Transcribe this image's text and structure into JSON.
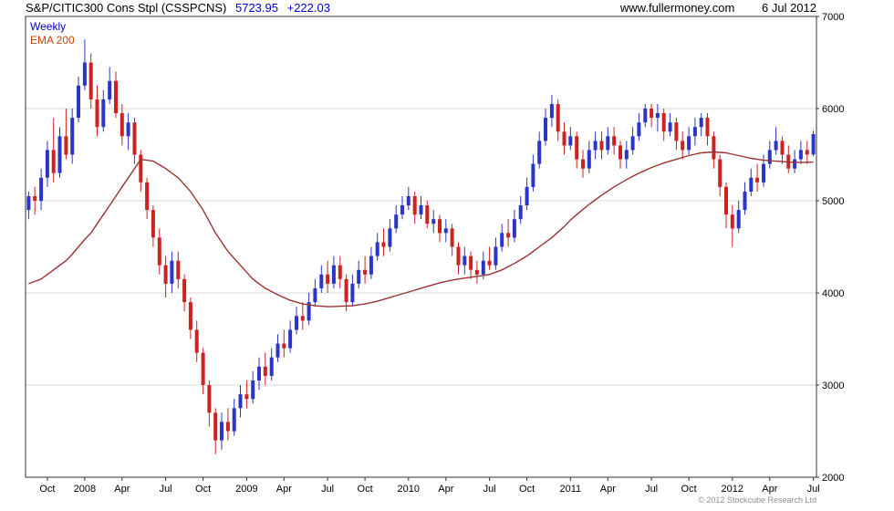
{
  "header": {
    "title": "S&P/CITIC300 Cons Stpl (CSSPCNS)",
    "price": "5723.95",
    "change": "+222.03",
    "website": "www.fullermoney.com",
    "date": "6 Jul 2012"
  },
  "legend": {
    "weekly": "Weekly",
    "ema": "EMA 200"
  },
  "footer": {
    "copyright": "© 2012 Stockcube Research Ltd"
  },
  "colors": {
    "up": "#2b35c8",
    "down": "#cc2222",
    "ema": "#993333",
    "grid": "#d8d8d8",
    "axis": "#333333",
    "accent": "#0000cc",
    "ema_label": "#cc4400"
  },
  "chart_data": {
    "type": "candlestick",
    "title": "S&P/CITIC300 Cons Stpl (CSSPCNS) weekly candles with 200-period EMA",
    "interval": "weekly",
    "last_close": 5723.95,
    "change": 222.03,
    "ylim": [
      2000,
      7000
    ],
    "y_ticks": [
      2000,
      3000,
      4000,
      5000,
      6000,
      7000
    ],
    "grid": "horizontal",
    "legend_position": "top-left",
    "x_ticks": [
      {
        "label": "Oct",
        "i": 3
      },
      {
        "label": "2008",
        "i": 9
      },
      {
        "label": "Apr",
        "i": 15
      },
      {
        "label": "Jul",
        "i": 22
      },
      {
        "label": "Oct",
        "i": 28
      },
      {
        "label": "2009",
        "i": 35
      },
      {
        "label": "Apr",
        "i": 41
      },
      {
        "label": "Jul",
        "i": 48
      },
      {
        "label": "Oct",
        "i": 54
      },
      {
        "label": "2010",
        "i": 61
      },
      {
        "label": "Apr",
        "i": 67
      },
      {
        "label": "Jul",
        "i": 74
      },
      {
        "label": "Oct",
        "i": 80
      },
      {
        "label": "2011",
        "i": 87
      },
      {
        "label": "Apr",
        "i": 93
      },
      {
        "label": "Jul",
        "i": 100
      },
      {
        "label": "Oct",
        "i": 106
      },
      {
        "label": "2012",
        "i": 113
      },
      {
        "label": "Apr",
        "i": 119
      },
      {
        "label": "Jul",
        "i": 126
      }
    ],
    "candles": [
      [
        4900,
        5100,
        4800,
        5050
      ],
      [
        5050,
        5150,
        4850,
        5000
      ],
      [
        5000,
        5350,
        4900,
        5250
      ],
      [
        5250,
        5650,
        5150,
        5550
      ],
      [
        5550,
        5900,
        5200,
        5300
      ],
      [
        5300,
        5800,
        5250,
        5700
      ],
      [
        5700,
        6000,
        5450,
        5500
      ],
      [
        5500,
        6000,
        5400,
        5900
      ],
      [
        5900,
        6350,
        5850,
        6250
      ],
      [
        6250,
        6750,
        6200,
        6500
      ],
      [
        6500,
        6600,
        6000,
        6100
      ],
      [
        6100,
        6250,
        5700,
        5800
      ],
      [
        5800,
        6200,
        5750,
        6100
      ],
      [
        6100,
        6450,
        6050,
        6300
      ],
      [
        6300,
        6400,
        5900,
        5950
      ],
      [
        5950,
        6050,
        5600,
        5700
      ],
      [
        5700,
        5950,
        5550,
        5850
      ],
      [
        5850,
        5900,
        5400,
        5500
      ],
      [
        5500,
        5550,
        5100,
        5200
      ],
      [
        5200,
        5250,
        4800,
        4900
      ],
      [
        4900,
        4950,
        4500,
        4600
      ],
      [
        4600,
        4700,
        4200,
        4300
      ],
      [
        4300,
        4400,
        3950,
        4100
      ],
      [
        4100,
        4450,
        4000,
        4350
      ],
      [
        4350,
        4450,
        4050,
        4150
      ],
      [
        4150,
        4200,
        3800,
        3900
      ],
      [
        3900,
        3950,
        3500,
        3600
      ],
      [
        3600,
        3700,
        3250,
        3350
      ],
      [
        3350,
        3400,
        2900,
        3000
      ],
      [
        3000,
        3050,
        2550,
        2700
      ],
      [
        2700,
        2750,
        2250,
        2400
      ],
      [
        2400,
        2700,
        2300,
        2600
      ],
      [
        2600,
        2750,
        2400,
        2500
      ],
      [
        2500,
        2850,
        2450,
        2750
      ],
      [
        2750,
        3000,
        2650,
        2900
      ],
      [
        2900,
        3050,
        2750,
        2850
      ],
      [
        2850,
        3150,
        2800,
        3050
      ],
      [
        3050,
        3300,
        2950,
        3200
      ],
      [
        3200,
        3350,
        3000,
        3100
      ],
      [
        3100,
        3400,
        3050,
        3300
      ],
      [
        3300,
        3550,
        3250,
        3450
      ],
      [
        3450,
        3600,
        3300,
        3400
      ],
      [
        3400,
        3700,
        3350,
        3600
      ],
      [
        3600,
        3850,
        3550,
        3750
      ],
      [
        3750,
        3900,
        3600,
        3700
      ],
      [
        3700,
        4000,
        3650,
        3900
      ],
      [
        3900,
        4150,
        3850,
        4050
      ],
      [
        4050,
        4300,
        4000,
        4200
      ],
      [
        4200,
        4350,
        4000,
        4100
      ],
      [
        4100,
        4400,
        4050,
        4300
      ],
      [
        4300,
        4400,
        4050,
        4150
      ],
      [
        4150,
        4200,
        3800,
        3900
      ],
      [
        3900,
        4200,
        3850,
        4100
      ],
      [
        4100,
        4350,
        4050,
        4250
      ],
      [
        4250,
        4400,
        4100,
        4200
      ],
      [
        4200,
        4500,
        4150,
        4400
      ],
      [
        4400,
        4650,
        4350,
        4550
      ],
      [
        4550,
        4700,
        4400,
        4500
      ],
      [
        4500,
        4800,
        4450,
        4700
      ],
      [
        4700,
        4950,
        4650,
        4850
      ],
      [
        4850,
        5050,
        4800,
        4950
      ],
      [
        4950,
        5150,
        4900,
        5050
      ],
      [
        5050,
        5100,
        4750,
        4850
      ],
      [
        4850,
        5050,
        4800,
        4950
      ],
      [
        4950,
        5000,
        4700,
        4750
      ],
      [
        4750,
        4900,
        4650,
        4800
      ],
      [
        4800,
        4850,
        4550,
        4650
      ],
      [
        4650,
        4800,
        4550,
        4700
      ],
      [
        4700,
        4750,
        4400,
        4500
      ],
      [
        4500,
        4550,
        4200,
        4300
      ],
      [
        4300,
        4500,
        4200,
        4400
      ],
      [
        4400,
        4450,
        4150,
        4250
      ],
      [
        4250,
        4350,
        4100,
        4200
      ],
      [
        4200,
        4450,
        4150,
        4350
      ],
      [
        4350,
        4500,
        4250,
        4300
      ],
      [
        4300,
        4600,
        4250,
        4500
      ],
      [
        4500,
        4750,
        4450,
        4650
      ],
      [
        4650,
        4800,
        4500,
        4600
      ],
      [
        4600,
        4900,
        4550,
        4800
      ],
      [
        4800,
        5050,
        4750,
        4950
      ],
      [
        4950,
        5250,
        4900,
        5150
      ],
      [
        5150,
        5500,
        5100,
        5400
      ],
      [
        5400,
        5750,
        5350,
        5650
      ],
      [
        5650,
        6000,
        5600,
        5900
      ],
      [
        5900,
        6150,
        5800,
        6050
      ],
      [
        6050,
        6100,
        5650,
        5750
      ],
      [
        5750,
        5850,
        5500,
        5600
      ],
      [
        5600,
        5800,
        5550,
        5700
      ],
      [
        5700,
        5750,
        5350,
        5450
      ],
      [
        5450,
        5550,
        5250,
        5350
      ],
      [
        5350,
        5650,
        5300,
        5550
      ],
      [
        5550,
        5750,
        5450,
        5650
      ],
      [
        5650,
        5750,
        5450,
        5550
      ],
      [
        5550,
        5800,
        5500,
        5700
      ],
      [
        5700,
        5800,
        5500,
        5600
      ],
      [
        5600,
        5650,
        5350,
        5450
      ],
      [
        5450,
        5650,
        5350,
        5550
      ],
      [
        5550,
        5800,
        5500,
        5700
      ],
      [
        5700,
        5950,
        5650,
        5850
      ],
      [
        5850,
        6050,
        5800,
        6000
      ],
      [
        6000,
        6050,
        5800,
        5900
      ],
      [
        5900,
        6050,
        5750,
        5950
      ],
      [
        5950,
        6000,
        5650,
        5750
      ],
      [
        5750,
        5950,
        5700,
        5850
      ],
      [
        5850,
        5900,
        5550,
        5650
      ],
      [
        5650,
        5750,
        5450,
        5550
      ],
      [
        5550,
        5800,
        5500,
        5700
      ],
      [
        5700,
        5900,
        5600,
        5800
      ],
      [
        5800,
        5950,
        5700,
        5900
      ],
      [
        5900,
        5950,
        5600,
        5700
      ],
      [
        5700,
        5750,
        5350,
        5450
      ],
      [
        5450,
        5500,
        5050,
        5150
      ],
      [
        5150,
        5200,
        4700,
        4850
      ],
      [
        4850,
        4950,
        4500,
        4700
      ],
      [
        4700,
        5000,
        4650,
        4900
      ],
      [
        4900,
        5200,
        4850,
        5100
      ],
      [
        5100,
        5350,
        5050,
        5250
      ],
      [
        5250,
        5400,
        5100,
        5200
      ],
      [
        5200,
        5500,
        5150,
        5400
      ],
      [
        5400,
        5650,
        5350,
        5550
      ],
      [
        5550,
        5800,
        5500,
        5650
      ],
      [
        5650,
        5700,
        5400,
        5500
      ],
      [
        5500,
        5600,
        5300,
        5350
      ],
      [
        5350,
        5550,
        5300,
        5450
      ],
      [
        5450,
        5650,
        5400,
        5550
      ],
      [
        5550,
        5650,
        5400,
        5501.92
      ],
      [
        5501.92,
        5760,
        5480,
        5723.95
      ]
    ],
    "ema200": [
      4100,
      4125,
      4150,
      4200,
      4250,
      4300,
      4350,
      4420,
      4500,
      4580,
      4650,
      4750,
      4850,
      4950,
      5050,
      5150,
      5250,
      5350,
      5450,
      5440,
      5430,
      5390,
      5350,
      5300,
      5250,
      5175,
      5100,
      5000,
      4900,
      4775,
      4650,
      4550,
      4450,
      4375,
      4300,
      4225,
      4150,
      4100,
      4050,
      4015,
      3980,
      3950,
      3920,
      3900,
      3880,
      3870,
      3860,
      3855,
      3850,
      3852,
      3855,
      3858,
      3860,
      3870,
      3880,
      3895,
      3910,
      3930,
      3950,
      3970,
      3990,
      4010,
      4030,
      4050,
      4070,
      4090,
      4110,
      4125,
      4140,
      4150,
      4160,
      4170,
      4180,
      4190,
      4200,
      4225,
      4250,
      4285,
      4320,
      4360,
      4400,
      4450,
      4500,
      4550,
      4600,
      4660,
      4720,
      4790,
      4850,
      4905,
      4960,
      5010,
      5060,
      5105,
      5150,
      5190,
      5230,
      5265,
      5300,
      5330,
      5360,
      5385,
      5410,
      5430,
      5450,
      5470,
      5490,
      5505,
      5520,
      5525,
      5530,
      5525,
      5520,
      5505,
      5490,
      5475,
      5460,
      5450,
      5440,
      5435,
      5430,
      5425,
      5420,
      5418,
      5415,
      5418,
      5420
    ]
  }
}
